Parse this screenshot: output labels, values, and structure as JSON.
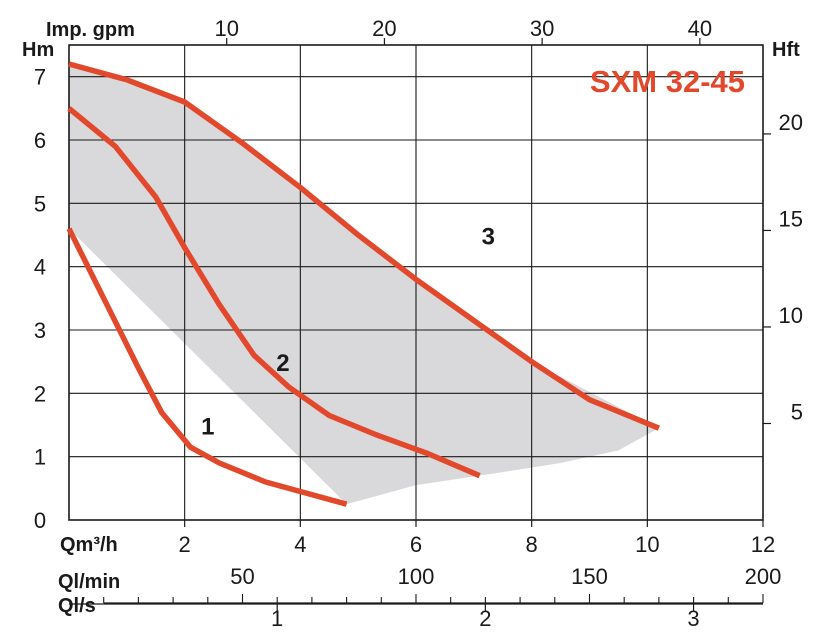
{
  "chart_data": {
    "type": "line",
    "title": "SXM 32-45",
    "xlabel": "Qm³/h",
    "ylabel": "Hm",
    "xlim": [
      0,
      12
    ],
    "ylim": [
      0,
      7.5
    ],
    "x_ticks": [
      2,
      4,
      6,
      8,
      10,
      12
    ],
    "y_ticks": [
      0,
      1,
      2,
      3,
      4,
      5,
      6,
      7
    ],
    "grid": true,
    "series": [
      {
        "name": "1",
        "color": "#e2492c",
        "x": [
          0.0,
          0.6,
          1.2,
          1.6,
          2.1,
          2.6,
          3.4,
          4.0,
          4.8
        ],
        "y": [
          4.6,
          3.5,
          2.4,
          1.7,
          1.15,
          0.9,
          0.6,
          0.45,
          0.25
        ]
      },
      {
        "name": "2",
        "color": "#e2492c",
        "x": [
          0.0,
          0.8,
          1.5,
          2.0,
          2.6,
          3.2,
          3.8,
          4.5,
          5.3,
          6.2,
          7.1
        ],
        "y": [
          6.5,
          5.9,
          5.1,
          4.3,
          3.4,
          2.6,
          2.1,
          1.65,
          1.35,
          1.05,
          0.7
        ]
      },
      {
        "name": "3",
        "color": "#e2492c",
        "x": [
          0.0,
          1.0,
          2.0,
          3.0,
          4.0,
          5.0,
          6.0,
          7.0,
          8.0,
          9.0,
          10.2
        ],
        "y": [
          7.2,
          6.95,
          6.6,
          5.95,
          5.25,
          4.5,
          3.8,
          3.15,
          2.5,
          1.9,
          1.45
        ]
      }
    ],
    "envelope": {
      "color": "#d9d9db",
      "x": [
        0.0,
        2.0,
        4.0,
        6.0,
        8.0,
        10.2,
        10.2,
        9.5,
        8.5,
        7.1,
        6.0,
        4.8,
        4.8,
        0.0
      ],
      "y": [
        7.2,
        6.6,
        5.25,
        3.8,
        2.5,
        1.45,
        1.45,
        1.1,
        0.9,
        0.7,
        0.55,
        0.25,
        0.25,
        4.6
      ]
    },
    "curve_labels": [
      {
        "text": "1",
        "x": 2.4,
        "y": 1.35
      },
      {
        "text": "2",
        "x": 3.7,
        "y": 2.35
      },
      {
        "text": "3",
        "x": 7.25,
        "y": 4.35
      }
    ],
    "top_axis": {
      "label": "Imp. gpm",
      "ticks": [
        "10",
        "20",
        "30",
        "40"
      ],
      "values": [
        10,
        20,
        30,
        40
      ],
      "per_m3h": 3.667
    },
    "right_axis": {
      "label": "Hft",
      "ticks": [
        "5",
        "10",
        "15",
        "20"
      ],
      "values": [
        5,
        10,
        15,
        20
      ],
      "per_m": 3.281
    },
    "lmin_axis": {
      "label": "Ql/min",
      "ticks": [
        "50",
        "100",
        "150",
        "200"
      ],
      "values": [
        50,
        100,
        150,
        200
      ],
      "minor_step": 10,
      "per_m3h": 16.667
    },
    "ls_axis": {
      "label": "Ql/s",
      "ticks": [
        "1",
        "2",
        "3"
      ],
      "values": [
        1,
        2,
        3
      ],
      "per_m3h": 0.2778
    }
  }
}
